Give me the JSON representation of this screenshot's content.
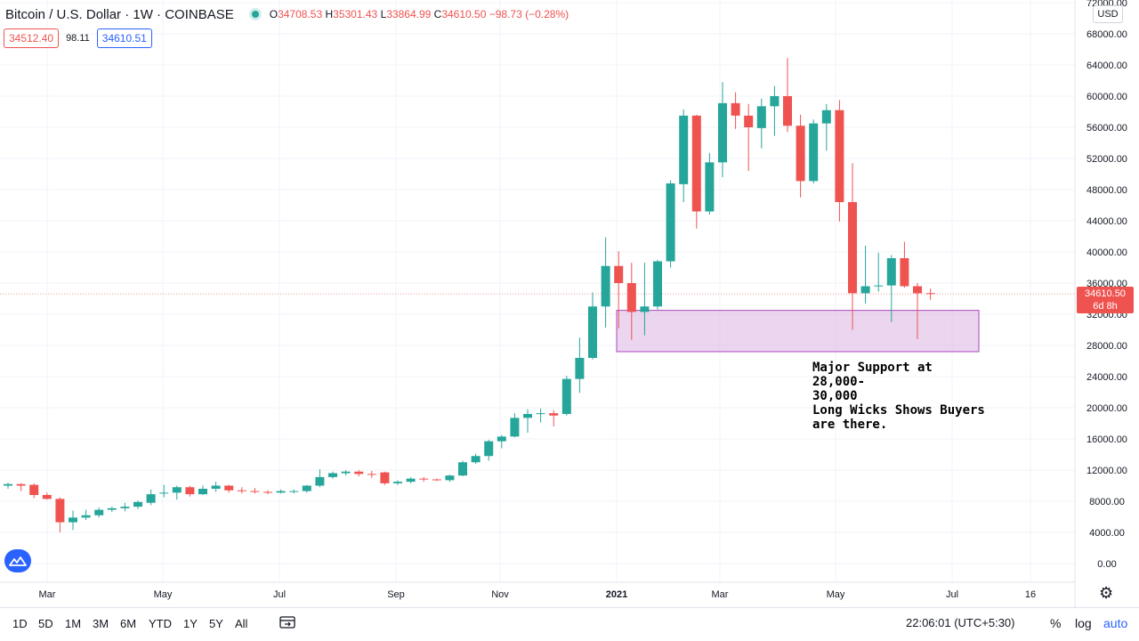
{
  "header": {
    "symbol": "Bitcoin / U.S. Dollar · 1W · COINBASE",
    "o_label": "O",
    "o_value": "34708.53",
    "h_label": "H",
    "h_value": "35301.43",
    "l_label": "L",
    "l_value": "33864.99",
    "c_label": "C",
    "c_value": "34610.50",
    "change": "−98.73 (−0.28%)",
    "bid": "34512.40",
    "spread": "98.11",
    "ask": "34610.51",
    "currency": "USD"
  },
  "last_price": {
    "value": "34610.50",
    "countdown": "6d 8h"
  },
  "annotation": {
    "line1": "Major Support at 28,000-",
    "line2": "30,000",
    "line3": "Long Wicks Shows Buyers",
    "line4": "are there."
  },
  "timeframes": [
    "1D",
    "5D",
    "1M",
    "3M",
    "6M",
    "YTD",
    "1Y",
    "5Y",
    "All"
  ],
  "status": {
    "time": "22:06:01 (UTC+5:30)",
    "percent": "%",
    "log": "log",
    "auto": "auto"
  },
  "colors": {
    "up": "#26a69a",
    "down": "#ef5350",
    "support_zone": "#e1bee7",
    "support_border": "#ab47bc"
  },
  "chart_data": {
    "type": "candlestick",
    "title": "Bitcoin / U.S. Dollar · 1W · COINBASE",
    "ylim": [
      -1000,
      72000
    ],
    "y_ticks": [
      "0.00",
      "4000.00",
      "8000.00",
      "12000.00",
      "16000.00",
      "20000.00",
      "24000.00",
      "28000.00",
      "32000.00",
      "36000.00",
      "40000.00",
      "44000.00",
      "48000.00",
      "52000.00",
      "56000.00",
      "60000.00",
      "64000.00",
      "68000.00",
      "72000.00"
    ],
    "x_tick_labels": [
      "Mar",
      "May",
      "Jul",
      "Sep",
      "Nov",
      "2021",
      "Mar",
      "May",
      "Jul",
      "16"
    ],
    "last_price": 34610.5,
    "support_zone": {
      "low": 27200,
      "high": 32500,
      "label": "Major Support at 28,000-30,000"
    },
    "candles": [
      {
        "o": 10000,
        "h": 10400,
        "l": 9600,
        "c": 10200
      },
      {
        "o": 10200,
        "h": 10300,
        "l": 9300,
        "c": 10000
      },
      {
        "o": 10100,
        "h": 10300,
        "l": 8400,
        "c": 8800
      },
      {
        "o": 8800,
        "h": 9100,
        "l": 8200,
        "c": 8300
      },
      {
        "o": 8300,
        "h": 8500,
        "l": 4000,
        "c": 5300
      },
      {
        "o": 5300,
        "h": 6800,
        "l": 4300,
        "c": 5900
      },
      {
        "o": 5900,
        "h": 6900,
        "l": 5600,
        "c": 6200
      },
      {
        "o": 6200,
        "h": 7200,
        "l": 5900,
        "c": 6900
      },
      {
        "o": 6900,
        "h": 7300,
        "l": 6600,
        "c": 7100
      },
      {
        "o": 7100,
        "h": 7800,
        "l": 6700,
        "c": 7300
      },
      {
        "o": 7300,
        "h": 8100,
        "l": 7000,
        "c": 7900
      },
      {
        "o": 7800,
        "h": 9500,
        "l": 7500,
        "c": 8900
      },
      {
        "o": 9000,
        "h": 10100,
        "l": 8500,
        "c": 9100
      },
      {
        "o": 9100,
        "h": 10000,
        "l": 8200,
        "c": 9800
      },
      {
        "o": 9800,
        "h": 10000,
        "l": 8600,
        "c": 8900
      },
      {
        "o": 8900,
        "h": 10000,
        "l": 8800,
        "c": 9600
      },
      {
        "o": 9600,
        "h": 10500,
        "l": 9200,
        "c": 10000
      },
      {
        "o": 10000,
        "h": 10100,
        "l": 9100,
        "c": 9400
      },
      {
        "o": 9400,
        "h": 9800,
        "l": 9000,
        "c": 9300
      },
      {
        "o": 9300,
        "h": 9700,
        "l": 9000,
        "c": 9200
      },
      {
        "o": 9200,
        "h": 9400,
        "l": 8900,
        "c": 9100
      },
      {
        "o": 9100,
        "h": 9500,
        "l": 9000,
        "c": 9300
      },
      {
        "o": 9200,
        "h": 9500,
        "l": 9000,
        "c": 9300
      },
      {
        "o": 9300,
        "h": 10100,
        "l": 9100,
        "c": 10000
      },
      {
        "o": 10000,
        "h": 12100,
        "l": 9800,
        "c": 11100
      },
      {
        "o": 11100,
        "h": 11800,
        "l": 10900,
        "c": 11600
      },
      {
        "o": 11600,
        "h": 12000,
        "l": 11300,
        "c": 11800
      },
      {
        "o": 11800,
        "h": 12000,
        "l": 11200,
        "c": 11500
      },
      {
        "o": 11500,
        "h": 11900,
        "l": 11000,
        "c": 11400
      },
      {
        "o": 11700,
        "h": 11800,
        "l": 10100,
        "c": 10300
      },
      {
        "o": 10300,
        "h": 10700,
        "l": 10100,
        "c": 10500
      },
      {
        "o": 10500,
        "h": 11100,
        "l": 10300,
        "c": 10900
      },
      {
        "o": 10900,
        "h": 11100,
        "l": 10500,
        "c": 10800
      },
      {
        "o": 10800,
        "h": 10900,
        "l": 10600,
        "c": 10700
      },
      {
        "o": 10700,
        "h": 11400,
        "l": 10500,
        "c": 11300
      },
      {
        "o": 11300,
        "h": 13200,
        "l": 11200,
        "c": 13000
      },
      {
        "o": 13000,
        "h": 14100,
        "l": 12800,
        "c": 13800
      },
      {
        "o": 13800,
        "h": 15900,
        "l": 13200,
        "c": 15700
      },
      {
        "o": 15700,
        "h": 16500,
        "l": 14800,
        "c": 16300
      },
      {
        "o": 16300,
        "h": 19300,
        "l": 16200,
        "c": 18700
      },
      {
        "o": 18700,
        "h": 19800,
        "l": 16800,
        "c": 19200
      },
      {
        "o": 19200,
        "h": 19900,
        "l": 18100,
        "c": 19300
      },
      {
        "o": 19300,
        "h": 19700,
        "l": 17600,
        "c": 19000
      },
      {
        "o": 19200,
        "h": 24100,
        "l": 19000,
        "c": 23700
      },
      {
        "o": 23700,
        "h": 29000,
        "l": 21900,
        "c": 26400
      },
      {
        "o": 26400,
        "h": 34800,
        "l": 26200,
        "c": 33000
      },
      {
        "o": 33000,
        "h": 41900,
        "l": 30300,
        "c": 38200
      },
      {
        "o": 38200,
        "h": 40100,
        "l": 30200,
        "c": 36000
      },
      {
        "o": 36000,
        "h": 38600,
        "l": 28700,
        "c": 32300
      },
      {
        "o": 32300,
        "h": 38600,
        "l": 29300,
        "c": 33000
      },
      {
        "o": 33000,
        "h": 39000,
        "l": 32600,
        "c": 38800
      },
      {
        "o": 38800,
        "h": 49200,
        "l": 38000,
        "c": 48800
      },
      {
        "o": 48700,
        "h": 58300,
        "l": 46400,
        "c": 57500
      },
      {
        "o": 57500,
        "h": 57600,
        "l": 43000,
        "c": 45200
      },
      {
        "o": 45200,
        "h": 52700,
        "l": 44800,
        "c": 51500
      },
      {
        "o": 51500,
        "h": 61800,
        "l": 49600,
        "c": 59100
      },
      {
        "o": 59100,
        "h": 60500,
        "l": 55800,
        "c": 57500
      },
      {
        "o": 57500,
        "h": 59000,
        "l": 50400,
        "c": 56000
      },
      {
        "o": 55900,
        "h": 59700,
        "l": 53300,
        "c": 58700
      },
      {
        "o": 58700,
        "h": 61300,
        "l": 54900,
        "c": 60000
      },
      {
        "o": 60000,
        "h": 64900,
        "l": 55400,
        "c": 56200
      },
      {
        "o": 56200,
        "h": 57600,
        "l": 47000,
        "c": 49100
      },
      {
        "o": 49100,
        "h": 57000,
        "l": 48800,
        "c": 56500
      },
      {
        "o": 56500,
        "h": 59000,
        "l": 53000,
        "c": 58200
      },
      {
        "o": 58200,
        "h": 59500,
        "l": 43900,
        "c": 46400
      },
      {
        "o": 46400,
        "h": 51400,
        "l": 30000,
        "c": 34700
      },
      {
        "o": 34700,
        "h": 40800,
        "l": 33400,
        "c": 35600
      },
      {
        "o": 35600,
        "h": 39900,
        "l": 34900,
        "c": 35700
      },
      {
        "o": 35700,
        "h": 39600,
        "l": 31000,
        "c": 39200
      },
      {
        "o": 39200,
        "h": 41300,
        "l": 35400,
        "c": 35600
      },
      {
        "o": 35600,
        "h": 36000,
        "l": 28800,
        "c": 34700
      },
      {
        "o": 34708.53,
        "h": 35301.43,
        "l": 33864.99,
        "c": 34610.5
      }
    ]
  }
}
